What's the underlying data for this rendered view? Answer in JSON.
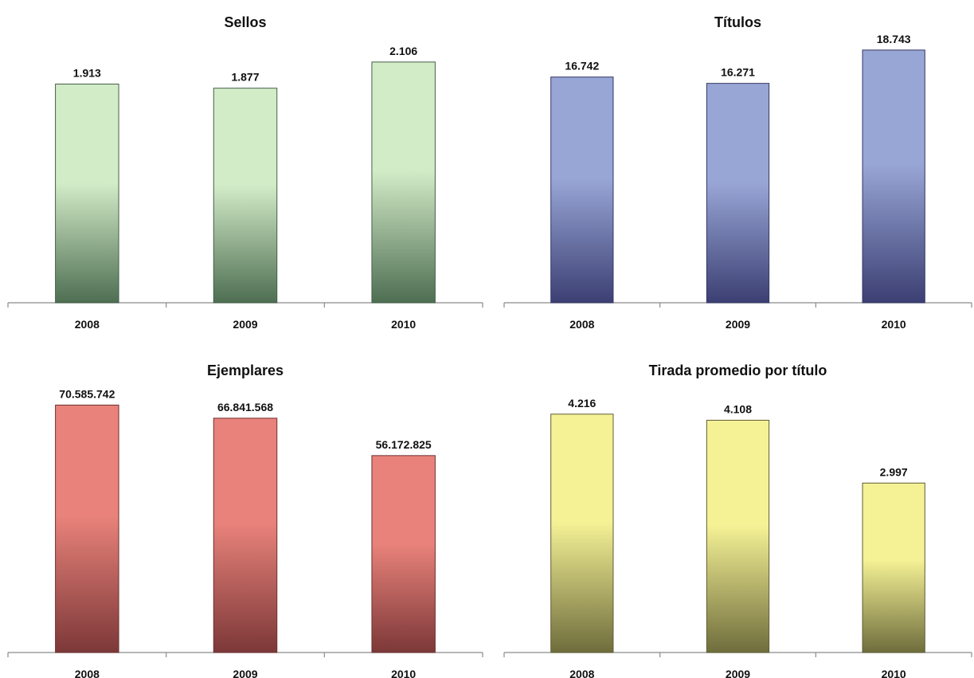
{
  "chart_data": [
    {
      "type": "bar",
      "title": "Sellos",
      "categories": [
        "2008",
        "2009",
        "2010"
      ],
      "values": [
        1913,
        1877,
        2106
      ],
      "value_labels": [
        "1.913",
        "1.877",
        "2.106"
      ],
      "ylim": [
        0,
        2300
      ],
      "grid": false,
      "colors": {
        "top": "#d3ecc8",
        "bottom": "#4e6e52",
        "border": "#445f48"
      }
    },
    {
      "type": "bar",
      "title": "Títulos",
      "categories": [
        "2008",
        "2009",
        "2010"
      ],
      "values": [
        16742,
        16271,
        18743
      ],
      "value_labels": [
        "16.742",
        "16.271",
        "18.743"
      ],
      "ylim": [
        0,
        19500
      ],
      "grid": false,
      "colors": {
        "top": "#98a6d6",
        "bottom": "#3c3f73",
        "border": "#343763"
      }
    },
    {
      "type": "bar",
      "title": "Ejemplares",
      "categories": [
        "2008",
        "2009",
        "2010"
      ],
      "values": [
        70585742,
        66841568,
        56172825
      ],
      "value_labels": [
        "70.585.742",
        "66.841.568",
        "56.172.825"
      ],
      "ylim": [
        0,
        75000000
      ],
      "grid": false,
      "colors": {
        "top": "#e8827a",
        "bottom": "#7c3838",
        "border": "#6e3030"
      }
    },
    {
      "type": "bar",
      "title": "Tirada promedio por título",
      "categories": [
        "2008",
        "2009",
        "2010"
      ],
      "values": [
        4216,
        4108,
        2997
      ],
      "value_labels": [
        "4.216",
        "4.108",
        "2.997"
      ],
      "ylim": [
        0,
        4650
      ],
      "grid": false,
      "colors": {
        "top": "#f5f296",
        "bottom": "#6f6d3c",
        "border": "#5f5d33"
      }
    }
  ]
}
